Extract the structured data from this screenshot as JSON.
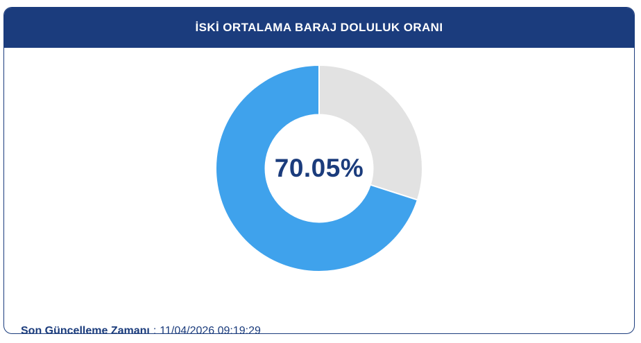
{
  "header": {
    "title": "İSKİ ORTALAMA BARAJ DOLULUK ORANI",
    "bg_color": "#1B3C7D",
    "text_color": "#FFFFFF"
  },
  "chart_data": {
    "type": "pie",
    "donut": true,
    "start_at_top": true,
    "clockwise": true,
    "inner_radius_ratio": 0.52,
    "slices": [
      {
        "value": 29.95,
        "color": "#E2E2E2"
      },
      {
        "value": 70.05,
        "color": "#3FA2EC"
      }
    ],
    "slice_border_color": "#FFFFFF",
    "slice_border_width": 2,
    "center_label": "70.05%",
    "center_label_color": "#1B3C7C",
    "legend": "none",
    "title": "İSKİ ORTALAMA BARAJ DOLULUK ORANI"
  },
  "footer": {
    "label": "Son Güncelleme Zamanı",
    "separator": ":",
    "value": "11/04/2026 09:19:29",
    "text_color": "#1B3C7C"
  }
}
